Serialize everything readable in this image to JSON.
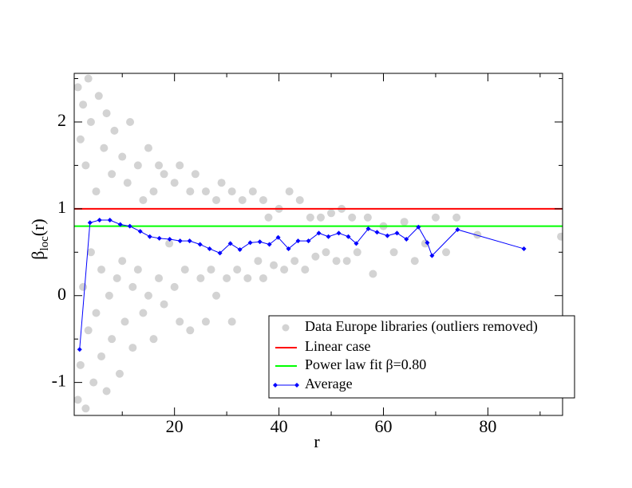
{
  "chart_data": {
    "type": "scatter",
    "xlabel": "r",
    "ylabel": {
      "main": "β",
      "sub": "loc",
      "tail": "(r)"
    },
    "xlim": [
      0.8,
      94.3
    ],
    "ylim": [
      -1.38,
      2.56
    ],
    "xticks": [
      20,
      40,
      60,
      80
    ],
    "yticks": [
      -1,
      0,
      1,
      2
    ],
    "xminorticks": [
      10,
      30,
      50,
      70,
      90
    ],
    "yminorticks": [
      -0.5,
      0.5,
      1.5,
      2.5
    ],
    "hlines": [
      {
        "name": "Linear case",
        "color": "#ff0000",
        "value": 1
      },
      {
        "name": "Power law fit β=0.80",
        "color": "#00ff00",
        "value": 0.8
      }
    ],
    "series": [
      {
        "name": "Data Europe libraries (outliers removed)",
        "color": "#d3d3d3",
        "x": [
          1.5,
          1.5,
          2,
          2,
          2.5,
          2.5,
          3,
          3,
          3.5,
          3.5,
          4,
          4,
          4.5,
          5,
          5,
          5.5,
          6,
          6,
          6.5,
          7,
          7,
          7.5,
          8,
          8,
          8.5,
          9,
          9.5,
          10,
          10,
          10.5,
          11,
          11.5,
          12,
          12,
          13,
          13,
          14,
          14,
          15,
          15,
          16,
          16,
          17,
          17,
          18,
          18,
          19,
          20,
          20,
          21,
          21,
          22,
          23,
          23,
          24,
          25,
          26,
          26,
          27,
          28,
          28,
          29,
          30,
          31,
          31,
          32,
          33,
          34,
          35,
          36,
          37,
          37,
          38,
          39,
          40,
          41,
          42,
          43,
          44,
          45,
          46,
          47,
          48,
          49,
          50,
          51,
          52,
          53,
          54,
          55,
          57,
          58,
          60,
          62,
          64,
          66,
          68,
          70,
          72,
          74,
          78,
          94
        ],
        "values": [
          2.4,
          -1.2,
          1.8,
          -0.8,
          2.2,
          0.1,
          -1.3,
          1.5,
          2.5,
          -0.4,
          0.5,
          2.0,
          -1.0,
          1.2,
          -0.2,
          2.3,
          0.3,
          -0.7,
          1.7,
          -1.1,
          2.1,
          0.0,
          1.4,
          -0.5,
          1.9,
          0.2,
          -0.9,
          1.6,
          0.4,
          -0.3,
          1.3,
          2.0,
          0.1,
          -0.6,
          1.5,
          0.3,
          1.1,
          -0.2,
          1.7,
          0.0,
          1.2,
          -0.5,
          0.2,
          1.5,
          1.4,
          -0.1,
          0.6,
          1.3,
          0.1,
          1.5,
          -0.3,
          0.3,
          1.2,
          -0.4,
          1.4,
          0.2,
          1.2,
          -0.3,
          0.3,
          1.1,
          0.0,
          1.3,
          0.2,
          1.2,
          -0.3,
          0.3,
          1.1,
          0.2,
          1.2,
          0.4,
          1.1,
          0.2,
          0.9,
          0.35,
          1.0,
          0.3,
          1.2,
          0.4,
          1.1,
          0.3,
          0.9,
          0.45,
          0.9,
          0.5,
          0.95,
          0.4,
          1.0,
          0.4,
          0.9,
          0.5,
          0.9,
          0.25,
          0.8,
          0.5,
          0.85,
          0.4,
          0.6,
          0.9,
          0.5,
          0.9,
          0.7,
          0.68
        ]
      },
      {
        "name": "Average",
        "color": "#0000ff",
        "x": [
          1.83,
          3.82,
          5.65,
          7.63,
          9.62,
          11.45,
          13.44,
          15.27,
          17.1,
          19.08,
          21.07,
          22.9,
          24.89,
          26.72,
          28.7,
          30.69,
          32.52,
          34.5,
          36.34,
          38.17,
          39.85,
          41.83,
          43.66,
          45.65,
          47.63,
          49.47,
          51.45,
          53.28,
          54.8,
          57.1,
          58.78,
          60.76,
          62.6,
          64.4,
          66.7,
          68.4,
          69.3,
          74.2,
          86.9
        ],
        "values": [
          -0.62,
          0.84,
          0.87,
          0.87,
          0.82,
          0.8,
          0.74,
          0.68,
          0.66,
          0.65,
          0.63,
          0.63,
          0.59,
          0.54,
          0.49,
          0.6,
          0.53,
          0.61,
          0.62,
          0.59,
          0.67,
          0.54,
          0.63,
          0.63,
          0.72,
          0.68,
          0.72,
          0.68,
          0.6,
          0.77,
          0.73,
          0.69,
          0.72,
          0.65,
          0.79,
          0.61,
          0.46,
          0.76,
          0.54
        ]
      }
    ]
  }
}
